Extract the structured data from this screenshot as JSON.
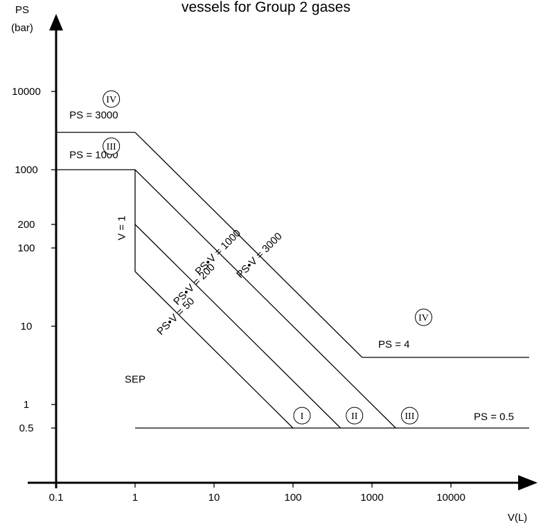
{
  "chart_data": {
    "type": "line",
    "title": "vessels for Group 2 gases",
    "ylabel": [
      "PS",
      "(bar)"
    ],
    "xlabel": "V(L)",
    "x_scale": "log",
    "y_scale": "log",
    "x_ticks": [
      0.1,
      1,
      10,
      100,
      1000,
      10000
    ],
    "x_tick_labels": [
      "0.1",
      "1",
      "10",
      "100",
      "1000",
      "10000"
    ],
    "y_ticks": [
      0.5,
      1,
      10,
      100,
      200,
      1000,
      10000
    ],
    "y_tick_labels": [
      "0.5",
      "1",
      "10",
      "100",
      "200",
      "1000",
      "10000"
    ],
    "series": [
      {
        "name": "PS = 3000",
        "points": [
          [
            0.1,
            3000
          ],
          [
            1,
            3000
          ]
        ]
      },
      {
        "name": "PS•V = 3000",
        "points": [
          [
            1,
            3000
          ],
          [
            750,
            4
          ]
        ]
      },
      {
        "name": "PS = 4",
        "points": [
          [
            750,
            4
          ],
          [
            100000,
            4
          ]
        ]
      },
      {
        "name": "PS = 1000",
        "points": [
          [
            0.1,
            1000
          ],
          [
            1,
            1000
          ]
        ]
      },
      {
        "name": "V = 1",
        "points": [
          [
            1,
            1000
          ],
          [
            1,
            50
          ]
        ]
      },
      {
        "name": "PS•V = 1000",
        "points": [
          [
            1,
            1000
          ],
          [
            2000,
            0.5
          ]
        ]
      },
      {
        "name": "PS•V = 200",
        "points": [
          [
            1,
            200
          ],
          [
            400,
            0.5
          ]
        ]
      },
      {
        "name": "PS•V = 50",
        "points": [
          [
            1,
            50
          ],
          [
            100,
            0.5
          ]
        ]
      },
      {
        "name": "PS = 0.5",
        "points": [
          [
            1,
            0.5
          ],
          [
            100000,
            0.5
          ]
        ]
      }
    ],
    "annotations": [
      {
        "text": "PS = 3000",
        "x": 0.3,
        "y": 4500,
        "rotate": 0
      },
      {
        "text": "PS = 1000",
        "x": 0.3,
        "y": 1400,
        "rotate": 0
      },
      {
        "text": "V = 1",
        "x": 0.75,
        "y": 180,
        "rotate": -90
      },
      {
        "text": "PS•V = 3000",
        "x": 40,
        "y": 75,
        "rotate": -45
      },
      {
        "text": "PS•V = 1000",
        "x": 12,
        "y": 82,
        "rotate": -45
      },
      {
        "text": "PS•V = 200",
        "x": 6,
        "y": 32,
        "rotate": -45
      },
      {
        "text": "PS•V = 50",
        "x": 3.5,
        "y": 12.5,
        "rotate": -45
      },
      {
        "text": "PS = 4",
        "x": 1900,
        "y": 5.3,
        "rotate": 0
      },
      {
        "text": "PS = 0.5",
        "x": 35000,
        "y": 0.63,
        "rotate": 0
      },
      {
        "text": "SEP",
        "x": 1,
        "y": 1.9,
        "rotate": 0
      }
    ],
    "category_markers": [
      {
        "label": "IV",
        "x": 0.5,
        "y": 8000
      },
      {
        "label": "III",
        "x": 0.5,
        "y": 2000
      },
      {
        "label": "IV",
        "x": 4500,
        "y": 13
      },
      {
        "label": "I",
        "x": 130,
        "y": 0.72
      },
      {
        "label": "II",
        "x": 600,
        "y": 0.72
      },
      {
        "label": "III",
        "x": 3000,
        "y": 0.72
      }
    ]
  }
}
